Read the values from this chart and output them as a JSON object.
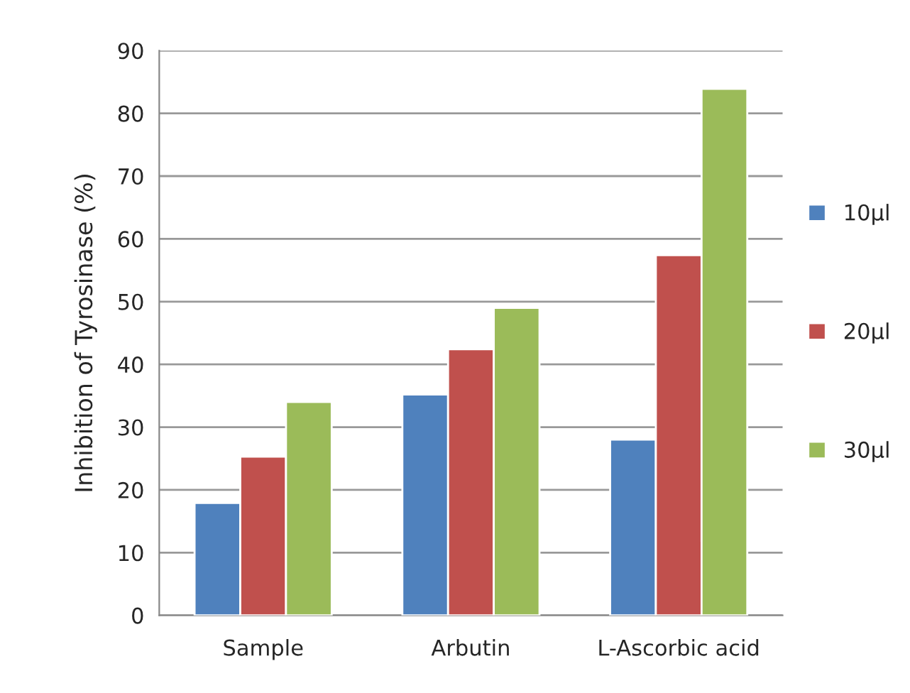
{
  "chart_data": {
    "type": "bar",
    "ylabel": "Inhibition of Tyrosinase (%)",
    "categories": [
      "Sample",
      "Arbutin",
      "L-Ascorbic acid"
    ],
    "series": [
      {
        "name": "10μl",
        "color": "#4f81bd",
        "values": [
          17.9,
          35.2,
          28.0
        ]
      },
      {
        "name": "20μl",
        "color": "#c0504d",
        "values": [
          25.3,
          42.4,
          57.4
        ]
      },
      {
        "name": "30μl",
        "color": "#9bbb59",
        "values": [
          34.0,
          49.0,
          83.9
        ]
      }
    ],
    "ylim": [
      0,
      90
    ],
    "yticks": [
      0,
      10,
      20,
      30,
      40,
      50,
      60,
      70,
      80,
      90
    ],
    "grid": "y",
    "legend": "right"
  }
}
